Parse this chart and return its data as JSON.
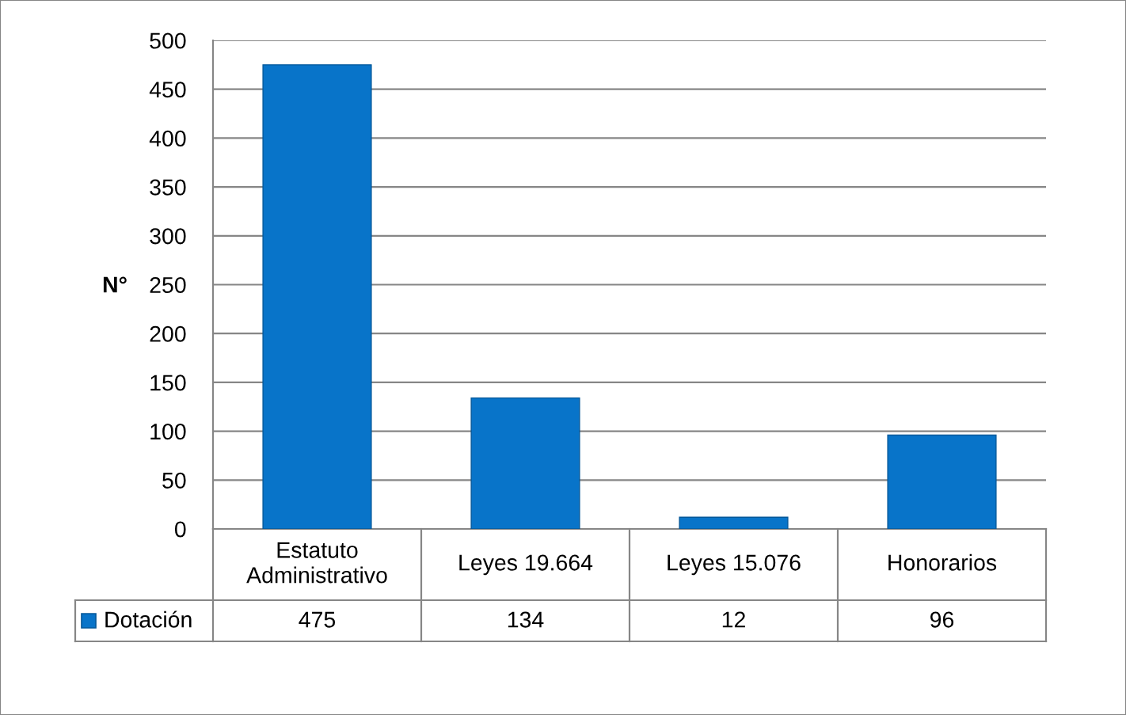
{
  "chart_data": {
    "type": "bar",
    "ylabel": "N°",
    "categories": [
      "Estatuto Administrativo",
      "Leyes 19.664",
      "Leyes 15.076",
      "Honorarios"
    ],
    "series": [
      {
        "name": "Dotación",
        "color": "#0874c9",
        "values": [
          475,
          134,
          12,
          96
        ]
      }
    ],
    "ylim": [
      0,
      500
    ],
    "yticks": [
      0,
      50,
      100,
      150,
      200,
      250,
      300,
      350,
      400,
      450,
      500
    ],
    "grid": "y",
    "legend": "bottom left",
    "data_labels": true
  }
}
